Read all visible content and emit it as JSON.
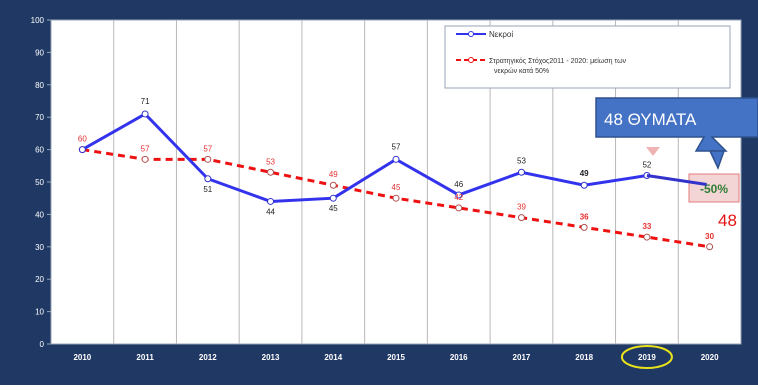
{
  "chart_data": {
    "type": "line",
    "categories": [
      "2010",
      "2011",
      "2012",
      "2013",
      "2014",
      "2015",
      "2016",
      "2017",
      "2018",
      "2019",
      "2020"
    ],
    "ylim": [
      0,
      100
    ],
    "yticks": [
      0,
      10,
      20,
      30,
      40,
      50,
      60,
      70,
      80,
      90,
      100
    ],
    "grid": "vertical",
    "legend_position": "top-right",
    "series": [
      {
        "name": "Νεκροί",
        "values": [
          60,
          71,
          51,
          44,
          45,
          57,
          46,
          53,
          49,
          52,
          null
        ],
        "labels": [
          "",
          "71",
          "51",
          "44",
          "45",
          "57",
          "46",
          "53",
          "49",
          "52",
          ""
        ],
        "color": "#3333ee",
        "style": "solid"
      },
      {
        "name": "Στρατηγικός Στόχος 2011 - 2020: μείωση των νεκρών κατά 50%",
        "values": [
          60,
          57,
          57,
          53,
          49,
          45,
          42,
          39,
          36,
          33,
          30
        ],
        "labels": [
          "60",
          "57",
          "57",
          "53",
          "49",
          "45",
          "42",
          "39",
          "36",
          "33",
          "30"
        ],
        "color": "#ee1111",
        "style": "dashed"
      }
    ],
    "legend": {
      "line1": "Νεκροί",
      "line2a": "Στρατηγικός Στόχος2011 - 2020: μείωση των",
      "line2b": "νεκρών κατά 50%"
    },
    "annotations": {
      "callout_text": "48 ΘΥΜΑΤΑ",
      "pct_badge": "-50%",
      "final_value": "48",
      "final_value_numeric": 48,
      "highlighted_year": "2019"
    }
  },
  "colors": {
    "frame": "#1f3864",
    "plot_bg": "#ffffff",
    "callout_fill": "#4472c4",
    "badge_fill": "#f4d5d5",
    "badge_text": "#2e7d32",
    "highlight_circle": "#e8e21a"
  }
}
